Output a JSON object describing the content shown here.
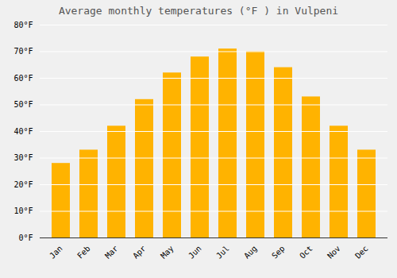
{
  "chart_data": {
    "type": "bar",
    "title": "Average monthly temperatures (°F ) in Vulpeni",
    "categories": [
      "Jan",
      "Feb",
      "Mar",
      "Apr",
      "May",
      "Jun",
      "Jul",
      "Aug",
      "Sep",
      "Oct",
      "Nov",
      "Dec"
    ],
    "values": [
      28,
      33,
      42,
      52,
      62,
      68,
      71,
      70,
      64,
      53,
      42,
      33
    ],
    "color": "#ffb300",
    "ylim": [
      0,
      80
    ],
    "yticks": [
      {
        "value": 0,
        "label": "0°F"
      },
      {
        "value": 10,
        "label": "10°F"
      },
      {
        "value": 20,
        "label": "20°F"
      },
      {
        "value": 30,
        "label": "30°F"
      },
      {
        "value": 40,
        "label": "40°F"
      },
      {
        "value": 50,
        "label": "50°F"
      },
      {
        "value": 60,
        "label": "60°F"
      },
      {
        "value": 70,
        "label": "70°F"
      },
      {
        "value": 80,
        "label": "80°F"
      }
    ],
    "grid": true
  }
}
